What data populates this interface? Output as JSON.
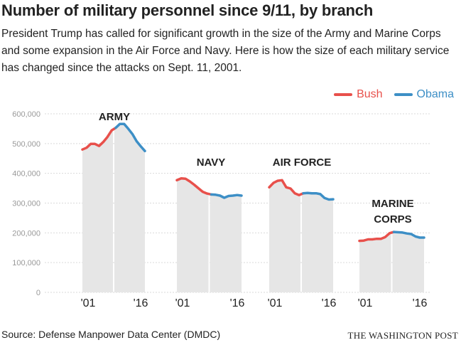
{
  "header": {
    "title": "Number of military personnel since 9/11, by branch",
    "subtitle": "President Trump has called for significant growth in the size of the Army and Marine Corps and some expansion in the Air Force and Navy. Here is how the size of each military service has changed since the attacks on Sept. 11, 2001."
  },
  "legend": {
    "bush": "Bush",
    "obama": "Obama"
  },
  "colors": {
    "bush": "#e8504b",
    "obama": "#3d8fc6",
    "area": "#e6e6e6",
    "grid": "#d9d9d9",
    "tick_text": "#999999",
    "label_text": "#222222"
  },
  "footer": {
    "source": "Source: Defense Manpower Data Center (DMDC)",
    "credit": "THE WASHINGTON POST"
  },
  "chart_data": {
    "type": "area",
    "ylim": [
      0,
      600000
    ],
    "yticks": [
      "0",
      "100,000",
      "200,000",
      "300,000",
      "400,000",
      "500,000",
      "600,000"
    ],
    "grid": true,
    "legend_position": "top-right",
    "x_tick_labels": [
      "'01",
      "'16"
    ],
    "periods": [
      {
        "name": "Bush",
        "years": [
          2001,
          2008
        ],
        "color_key": "bush"
      },
      {
        "name": "Obama",
        "years": [
          2009,
          2016
        ],
        "color_key": "obama"
      }
    ],
    "x": [
      2001,
      2002,
      2003,
      2004,
      2005,
      2006,
      2007,
      2008,
      2009,
      2010,
      2011,
      2012,
      2013,
      2014,
      2015,
      2016
    ],
    "series": [
      {
        "name": "ARMY",
        "label_lines": [
          "ARMY"
        ],
        "values": [
          480000,
          486000,
          499000,
          499000,
          492000,
          505000,
          522000,
          544000,
          553000,
          566000,
          566000,
          550000,
          532000,
          508000,
          491000,
          475000
        ]
      },
      {
        "name": "NAVY",
        "label_lines": [
          "NAVY"
        ],
        "values": [
          377000,
          383000,
          382000,
          373000,
          362000,
          350000,
          338000,
          332000,
          329000,
          328000,
          325000,
          318000,
          324000,
          325000,
          327000,
          325000
        ]
      },
      {
        "name": "AIR FORCE",
        "label_lines": [
          "AIR FORCE"
        ],
        "values": [
          353000,
          368000,
          375000,
          377000,
          353000,
          349000,
          333000,
          327000,
          333000,
          334000,
          333000,
          333000,
          330000,
          317000,
          312000,
          313000
        ]
      },
      {
        "name": "MARINE CORPS",
        "label_lines": [
          "MARINE",
          "CORPS"
        ],
        "values": [
          173000,
          174000,
          178000,
          178000,
          180000,
          180000,
          186000,
          199000,
          203000,
          202000,
          201000,
          198000,
          196000,
          188000,
          184000,
          184000
        ]
      }
    ]
  }
}
